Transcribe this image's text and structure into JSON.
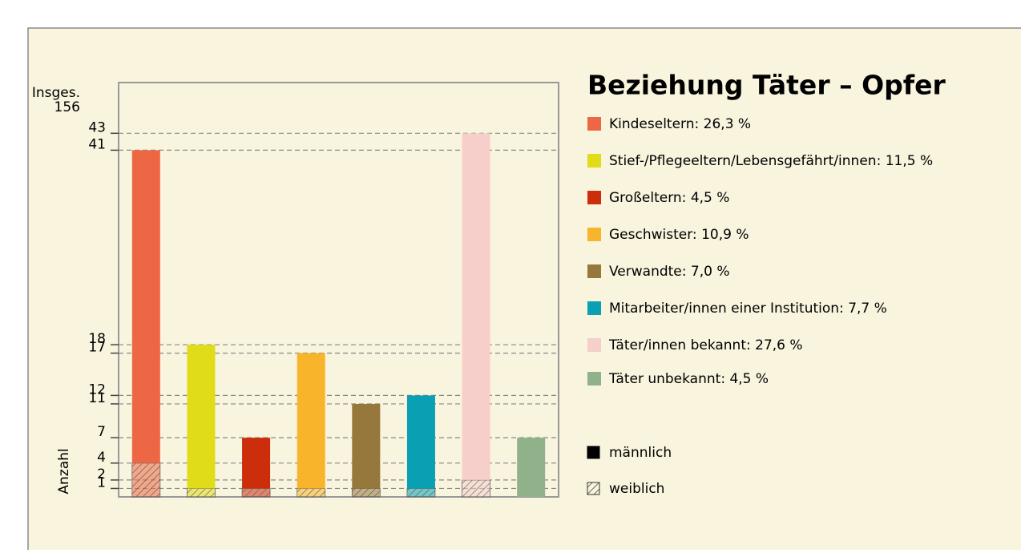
{
  "chart_data": {
    "type": "bar",
    "stacked": true,
    "title": "Beziehung Täter – Opfer",
    "y_label": "Anzahl",
    "total_label": "Insges.",
    "total": 156,
    "categories": [
      "Kindeseltern",
      "Stief-/Pflegeeltern/Lebensgefährt/innen",
      "Großeltern",
      "Geschwister",
      "Verwandte",
      "Mitarbeiter/innen einer Institution",
      "Täter/innen bekannt",
      "Täter unbekannt"
    ],
    "share_labels": [
      "26,3 %",
      "11,5 %",
      "4,5 %",
      "10,9 %",
      "7,0 %",
      "7,7 %",
      "27,6 %",
      "4,5 %"
    ],
    "colors": [
      "#ee6744",
      "#e0dc1a",
      "#cc2e0c",
      "#f8b42a",
      "#96773c",
      "#0aa0b4",
      "#f6cfca",
      "#90b28a"
    ],
    "series": [
      {
        "name": "weiblich",
        "pattern": "hatch",
        "color": "#333333",
        "values": [
          4,
          1,
          1,
          1,
          1,
          1,
          2,
          0
        ]
      },
      {
        "name": "männlich",
        "pattern": "solid",
        "color": "#000000",
        "values": [
          37,
          17,
          6,
          16,
          10,
          11,
          41,
          7
        ]
      }
    ],
    "ylim": [
      0,
      49
    ],
    "yticks": [
      1,
      2,
      4,
      7,
      11,
      12,
      17,
      18,
      41,
      43
    ],
    "grid": true
  }
}
